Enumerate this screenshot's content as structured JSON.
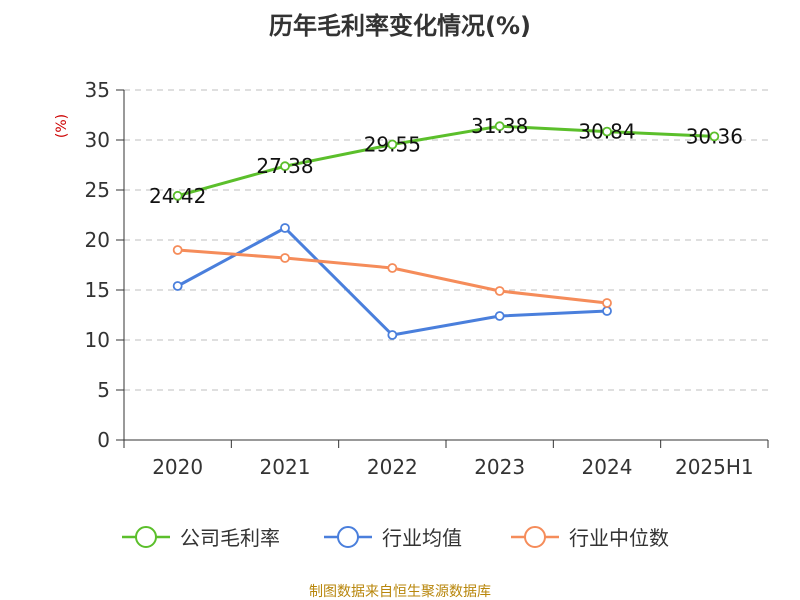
{
  "chart_data": {
    "type": "line",
    "title": "历年毛利率变化情况(%)",
    "ylabel": "(%)",
    "xlabel": "",
    "categories": [
      "2020",
      "2021",
      "2022",
      "2023",
      "2024",
      "2025H1"
    ],
    "ylim": [
      0,
      35
    ],
    "yticks": [
      "0",
      "5",
      "10",
      "15",
      "20",
      "25",
      "30",
      "35"
    ],
    "grid": "horizontal dashed",
    "legend_position": "bottom",
    "series": [
      {
        "name": "公司毛利率",
        "color": "#5bbf2b",
        "values": [
          24.42,
          27.38,
          29.55,
          31.38,
          30.84,
          30.36
        ],
        "labels": [
          "24.42",
          "27.38",
          "29.55",
          "31.38",
          "30.84",
          "30.36"
        ]
      },
      {
        "name": "行业均值",
        "color": "#4a7fdc",
        "values": [
          15.4,
          21.2,
          10.5,
          12.4,
          12.9,
          null
        ]
      },
      {
        "name": "行业中位数",
        "color": "#f58c5a",
        "values": [
          19.0,
          18.2,
          17.2,
          14.9,
          13.7,
          null
        ]
      }
    ]
  },
  "source": "制图数据来自恒生聚源数据库"
}
